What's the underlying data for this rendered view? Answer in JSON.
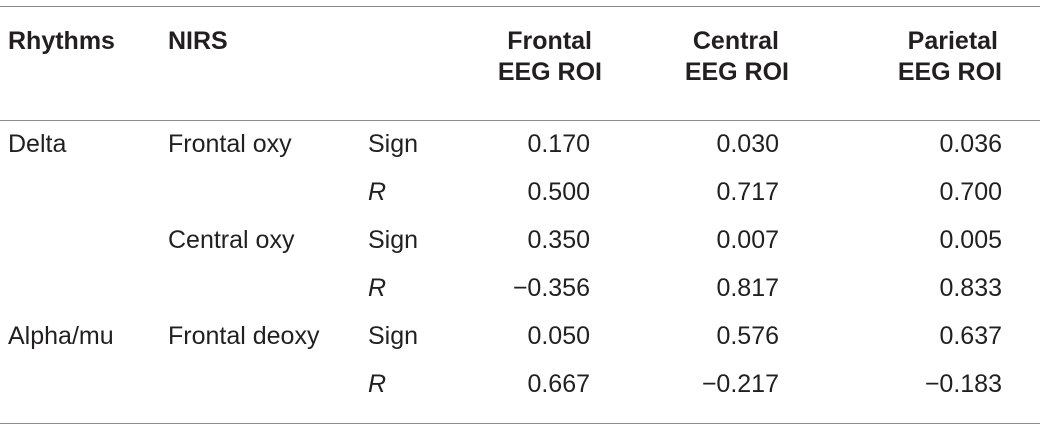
{
  "table": {
    "headers": {
      "rhythms": "Rhythms",
      "nirs": "NIRS",
      "frontal_line1": "Frontal",
      "frontal_line2": "EEG ROI",
      "central_line1": "Central",
      "central_line2": "EEG ROI",
      "parietal_line1": "Parietal",
      "parietal_line2": "EEG ROI"
    },
    "rows": [
      {
        "rhythm": "Delta",
        "nirs": "Frontal oxy",
        "stat": "Sign",
        "stat_italic": false,
        "frontal": "0.170",
        "central": "0.030",
        "parietal": "0.036"
      },
      {
        "rhythm": "",
        "nirs": "",
        "stat": "R",
        "stat_italic": true,
        "frontal": "0.500",
        "central": "0.717",
        "parietal": "0.700"
      },
      {
        "rhythm": "",
        "nirs": "Central oxy",
        "stat": "Sign",
        "stat_italic": false,
        "frontal": "0.350",
        "central": "0.007",
        "parietal": "0.005"
      },
      {
        "rhythm": "",
        "nirs": "",
        "stat": "R",
        "stat_italic": true,
        "frontal": "−0.356",
        "central": "0.817",
        "parietal": "0.833"
      },
      {
        "rhythm": "Alpha/mu",
        "nirs": "Frontal deoxy",
        "stat": "Sign",
        "stat_italic": false,
        "frontal": "0.050",
        "central": "0.576",
        "parietal": "0.637"
      },
      {
        "rhythm": "",
        "nirs": "",
        "stat": "R",
        "stat_italic": true,
        "frontal": "0.667",
        "central": "−0.217",
        "parietal": "−0.183"
      }
    ]
  }
}
